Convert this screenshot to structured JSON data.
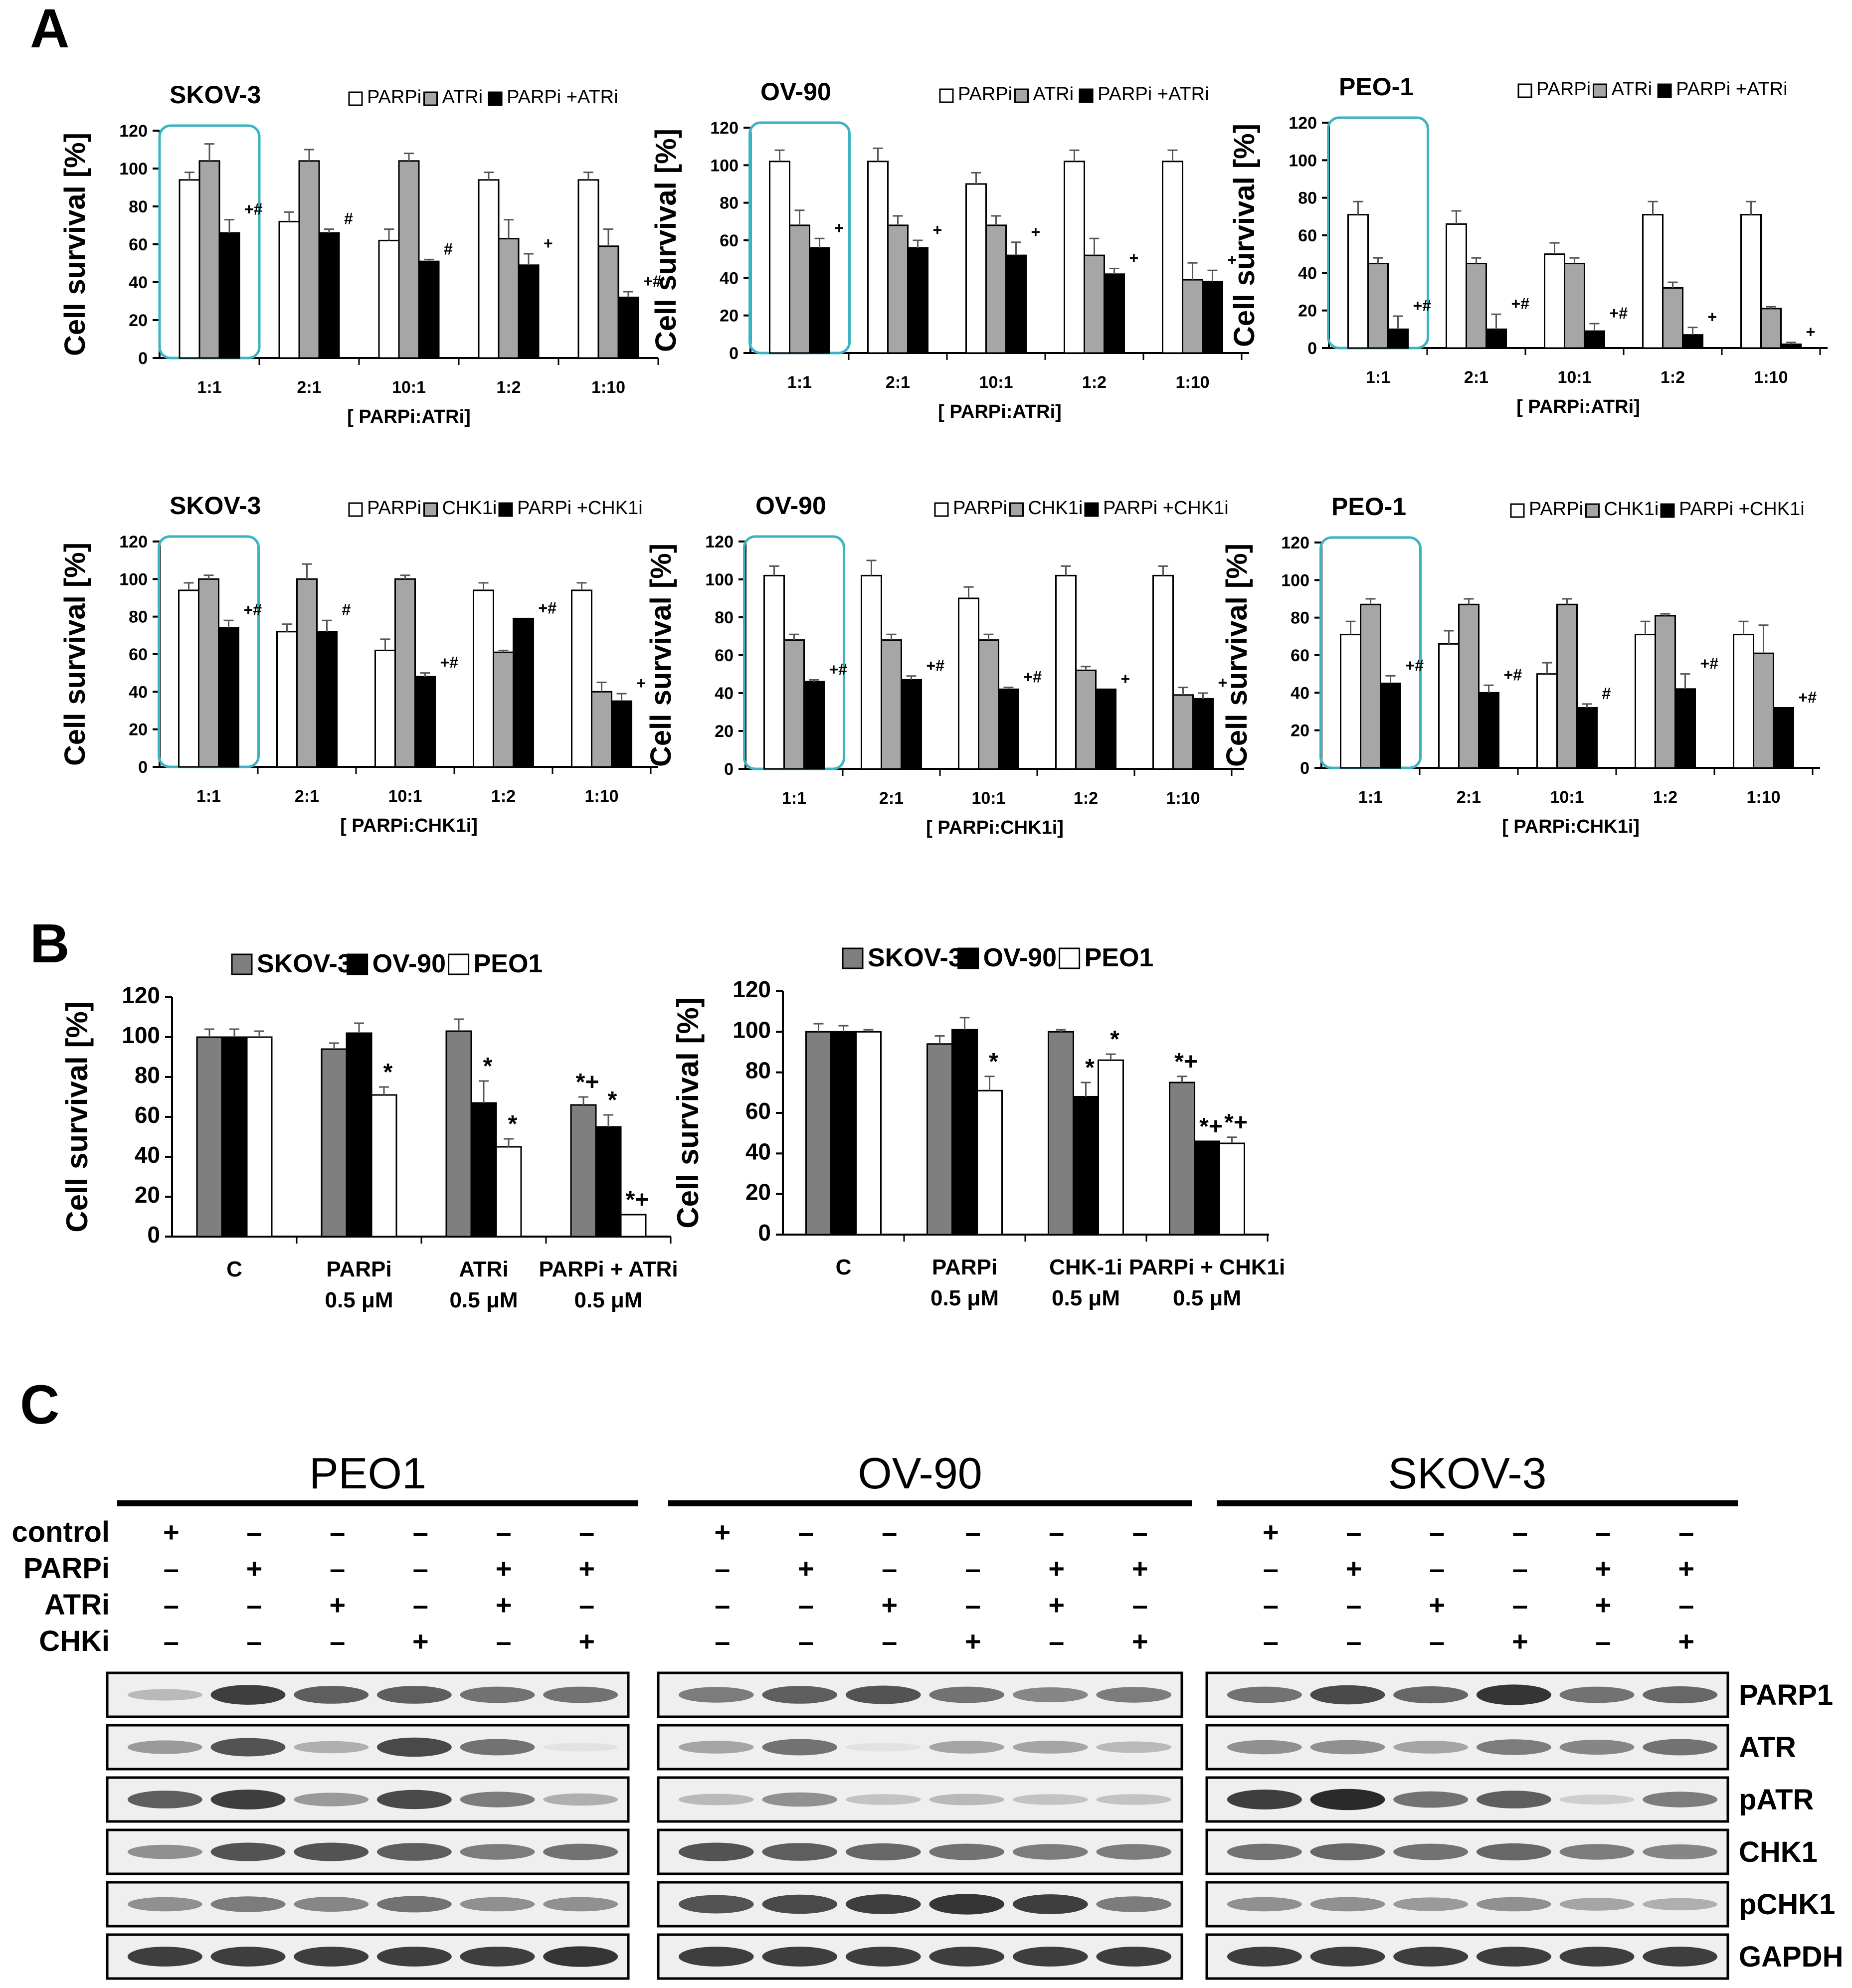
{
  "panel_letters": [
    "A",
    "B",
    "C"
  ],
  "chart_data": [
    {
      "id": "A1",
      "type": "bar",
      "title": "SKOV-3",
      "ylabel": "Cell survival [%]",
      "xlabel": "[ PARPi:ATRi]",
      "ylim": [
        0,
        120
      ],
      "yticks": [
        0,
        20,
        40,
        60,
        80,
        100,
        120
      ],
      "categories": [
        "1:1",
        "2:1",
        "10:1",
        "1:2",
        "1:10"
      ],
      "legend_position": "top-right",
      "highlight_category": "1:1",
      "colors": {
        "PARPi": "#ffffff",
        "ATRi": "#a6a6a6",
        "PARPi +ATRi": "#000000"
      },
      "series": [
        {
          "name": "PARPi",
          "values": [
            94,
            72,
            62,
            94,
            94
          ],
          "errors": [
            4,
            5,
            6,
            4,
            4
          ]
        },
        {
          "name": "ATRi",
          "values": [
            104,
            104,
            104,
            63,
            59
          ],
          "errors": [
            9,
            6,
            4,
            10,
            9
          ]
        },
        {
          "name": "PARPi +ATRi",
          "values": [
            66,
            66,
            51,
            49,
            32
          ],
          "errors": [
            7,
            2,
            1,
            6,
            3
          ]
        }
      ],
      "annotations": [
        "+#",
        "#",
        "#",
        "+",
        "+#"
      ]
    },
    {
      "id": "A2",
      "type": "bar",
      "title": "OV-90",
      "ylabel": "Cell survival [%]",
      "xlabel": "[ PARPi:ATRi]",
      "ylim": [
        0,
        120
      ],
      "yticks": [
        0,
        20,
        40,
        60,
        80,
        100,
        120
      ],
      "categories": [
        "1:1",
        "2:1",
        "10:1",
        "1:2",
        "1:10"
      ],
      "legend_position": "top-right",
      "highlight_category": "1:1",
      "colors": {
        "PARPi": "#ffffff",
        "ATRi": "#a6a6a6",
        "PARPi +ATRi": "#000000"
      },
      "series": [
        {
          "name": "PARPi",
          "values": [
            102,
            102,
            90,
            102,
            102
          ],
          "errors": [
            6,
            7,
            6,
            6,
            6
          ]
        },
        {
          "name": "ATRi",
          "values": [
            68,
            68,
            68,
            52,
            39
          ],
          "errors": [
            8,
            5,
            5,
            9,
            9
          ]
        },
        {
          "name": "PARPi +ATRi",
          "values": [
            56,
            56,
            52,
            42,
            38
          ],
          "errors": [
            5,
            4,
            7,
            3,
            6
          ]
        }
      ],
      "annotations": [
        "+",
        "+",
        "+",
        "+",
        "+"
      ]
    },
    {
      "id": "A3",
      "type": "bar",
      "title": "PEO-1",
      "ylabel": "Cell survival [%]",
      "xlabel": "[ PARPi:ATRi]",
      "ylim": [
        0,
        120
      ],
      "yticks": [
        0,
        20,
        40,
        60,
        80,
        100,
        120
      ],
      "categories": [
        "1:1",
        "2:1",
        "10:1",
        "1:2",
        "1:10"
      ],
      "legend_position": "top-right",
      "highlight_category": "1:1",
      "colors": {
        "PARPi": "#ffffff",
        "ATRi": "#a6a6a6",
        "PARPi +ATRi": "#000000"
      },
      "series": [
        {
          "name": "PARPi",
          "values": [
            71,
            66,
            50,
            71,
            71
          ],
          "errors": [
            7,
            7,
            6,
            7,
            7
          ]
        },
        {
          "name": "ATRi",
          "values": [
            45,
            45,
            45,
            32,
            21
          ],
          "errors": [
            3,
            3,
            3,
            3,
            1
          ]
        },
        {
          "name": "PARPi +ATRi",
          "values": [
            10,
            10,
            9,
            7,
            2
          ],
          "errors": [
            7,
            8,
            4,
            4,
            1
          ]
        }
      ],
      "annotations": [
        "+#",
        "+#",
        "+#",
        "+",
        "+"
      ]
    },
    {
      "id": "A4",
      "type": "bar",
      "title": "SKOV-3",
      "ylabel": "Cell survival [%]",
      "xlabel": "[ PARPi:CHK1i]",
      "ylim": [
        0,
        120
      ],
      "yticks": [
        0,
        20,
        40,
        60,
        80,
        100,
        120
      ],
      "categories": [
        "1:1",
        "2:1",
        "10:1",
        "1:2",
        "1:10"
      ],
      "legend_position": "top-right",
      "highlight_category": "1:1",
      "colors": {
        "PARPi": "#ffffff",
        "CHK1i": "#a6a6a6",
        "PARPi +CHK1i": "#000000"
      },
      "series": [
        {
          "name": "PARPi",
          "values": [
            94,
            72,
            62,
            94,
            94
          ],
          "errors": [
            4,
            4,
            6,
            4,
            4
          ]
        },
        {
          "name": "CHK1i",
          "values": [
            100,
            100,
            100,
            61,
            40
          ],
          "errors": [
            2,
            8,
            2,
            1,
            5
          ]
        },
        {
          "name": "PARPi +CHK1i",
          "values": [
            74,
            72,
            48,
            79,
            35
          ],
          "errors": [
            4,
            6,
            2,
            0,
            4
          ]
        }
      ],
      "annotations": [
        "+#",
        "#",
        "+#",
        "+#",
        "+"
      ]
    },
    {
      "id": "A5",
      "type": "bar",
      "title": "OV-90",
      "ylabel": "Cell survival [%]",
      "xlabel": "[ PARPi:CHK1i]",
      "ylim": [
        0,
        120
      ],
      "yticks": [
        0,
        20,
        40,
        60,
        80,
        100,
        120
      ],
      "categories": [
        "1:1",
        "2:1",
        "10:1",
        "1:2",
        "1:10"
      ],
      "legend_position": "top-right",
      "highlight_category": "1:1",
      "colors": {
        "PARPi": "#ffffff",
        "CHK1i": "#a6a6a6",
        "PARPi +CHK1i": "#000000"
      },
      "series": [
        {
          "name": "PARPi",
          "values": [
            102,
            102,
            90,
            102,
            102
          ],
          "errors": [
            5,
            8,
            6,
            5,
            5
          ]
        },
        {
          "name": "CHK1i",
          "values": [
            68,
            68,
            68,
            52,
            39
          ],
          "errors": [
            3,
            3,
            3,
            2,
            4
          ]
        },
        {
          "name": "PARPi +CHK1i",
          "values": [
            46,
            47,
            42,
            42,
            37
          ],
          "errors": [
            1,
            2,
            1,
            0,
            3
          ]
        }
      ],
      "annotations": [
        "+#",
        "+#",
        "+#",
        "+",
        "+"
      ]
    },
    {
      "id": "A6",
      "type": "bar",
      "title": "PEO-1",
      "ylabel": "Cell survival [%]",
      "xlabel": "[ PARPi:CHK1i]",
      "ylim": [
        0,
        120
      ],
      "yticks": [
        0,
        20,
        40,
        60,
        80,
        100,
        120
      ],
      "categories": [
        "1:1",
        "2:1",
        "10:1",
        "1:2",
        "1:10"
      ],
      "legend_position": "top-right",
      "highlight_category": "1:1",
      "colors": {
        "PARPi": "#ffffff",
        "CHK1i": "#a6a6a6",
        "PARPi +CHK1i": "#000000"
      },
      "series": [
        {
          "name": "PARPi",
          "values": [
            71,
            66,
            50,
            71,
            71
          ],
          "errors": [
            7,
            7,
            6,
            7,
            7
          ]
        },
        {
          "name": "CHK1i",
          "values": [
            87,
            87,
            87,
            81,
            61
          ],
          "errors": [
            3,
            3,
            3,
            1,
            15
          ]
        },
        {
          "name": "PARPi +CHK1i",
          "values": [
            45,
            40,
            32,
            42,
            32
          ],
          "errors": [
            4,
            4,
            2,
            8,
            0
          ]
        }
      ],
      "annotations": [
        "+#",
        "+#",
        "#",
        "+#",
        "+#"
      ]
    },
    {
      "id": "B1",
      "type": "bar",
      "ylabel": "Cell survival [%]",
      "ylim": [
        0,
        120
      ],
      "yticks": [
        0,
        20,
        40,
        60,
        80,
        100,
        120
      ],
      "categories": [
        [
          "C"
        ],
        [
          "PARPi",
          "0.5 μM"
        ],
        [
          "ATRi",
          "0.5 μM"
        ],
        [
          "PARPi + ATRi",
          "0.5 μM"
        ]
      ],
      "legend_position": "top",
      "colors": {
        "SKOV-3": "#7f7f7f",
        "OV-90": "#000000",
        "PEO1": "#ffffff"
      },
      "series": [
        {
          "name": "SKOV-3",
          "values": [
            100,
            94,
            103,
            66
          ],
          "errors": [
            4,
            3,
            6,
            4
          ],
          "annotations": [
            "",
            "",
            "",
            "*+"
          ]
        },
        {
          "name": "OV-90",
          "values": [
            100,
            102,
            67,
            55
          ],
          "errors": [
            4,
            5,
            11,
            6
          ],
          "annotations": [
            "",
            "",
            "*",
            "*"
          ]
        },
        {
          "name": "PEO1",
          "values": [
            100,
            71,
            45,
            11
          ],
          "errors": [
            3,
            4,
            4,
            0
          ],
          "annotations": [
            "",
            "*",
            "*",
            "*+"
          ]
        }
      ]
    },
    {
      "id": "B2",
      "type": "bar",
      "ylabel": "Cell survival [%]",
      "ylim": [
        0,
        120
      ],
      "yticks": [
        0,
        20,
        40,
        60,
        80,
        100,
        120
      ],
      "categories": [
        [
          "C"
        ],
        [
          "PARPi",
          "0.5 μM"
        ],
        [
          "CHK-1i",
          "0.5 μM"
        ],
        [
          "PARPi + CHK1i",
          "0.5 μM"
        ]
      ],
      "legend_position": "top",
      "colors": {
        "SKOV-3": "#7f7f7f",
        "OV-90": "#000000",
        "PEO1": "#ffffff"
      },
      "series": [
        {
          "name": "SKOV-3",
          "values": [
            100,
            94,
            100,
            75
          ],
          "errors": [
            4,
            4,
            1,
            3
          ],
          "annotations": [
            "",
            "",
            "",
            "*+"
          ]
        },
        {
          "name": "OV-90",
          "values": [
            100,
            101,
            68,
            46
          ],
          "errors": [
            3,
            6,
            7,
            0
          ],
          "annotations": [
            "",
            "",
            "*",
            "*+"
          ]
        },
        {
          "name": "PEO1",
          "values": [
            100,
            71,
            86,
            45
          ],
          "errors": [
            1,
            7,
            3,
            3
          ],
          "annotations": [
            "",
            "*",
            "*",
            "*+"
          ]
        }
      ]
    }
  ],
  "western": {
    "groups": [
      "PEO1",
      "OV-90",
      "SKOV-3"
    ],
    "treatment_rows": [
      {
        "label": "control",
        "signs": [
          "+",
          "–",
          "–",
          "–",
          "–",
          "–"
        ]
      },
      {
        "label": "PARPi",
        "signs": [
          "–",
          "+",
          "–",
          "–",
          "+",
          "+"
        ]
      },
      {
        "label": "ATRi",
        "signs": [
          "–",
          "–",
          "+",
          "–",
          "+",
          "–"
        ]
      },
      {
        "label": "CHKi",
        "signs": [
          "–",
          "–",
          "–",
          "+",
          "–",
          "+"
        ]
      }
    ],
    "proteins": [
      "PARP1",
      "ATR",
      "pATR",
      "CHK1",
      "pCHK1",
      "GAPDH"
    ],
    "band_intensity": {
      "PEO1": {
        "PARP1": [
          0.25,
          0.85,
          0.7,
          0.7,
          0.6,
          0.6
        ],
        "ATR": [
          0.4,
          0.75,
          0.3,
          0.8,
          0.6,
          0.05
        ],
        "pATR": [
          0.7,
          0.85,
          0.4,
          0.8,
          0.55,
          0.3
        ],
        "CHK1": [
          0.45,
          0.75,
          0.75,
          0.7,
          0.55,
          0.6
        ],
        "pCHK1": [
          0.45,
          0.55,
          0.5,
          0.6,
          0.45,
          0.45
        ],
        "GAPDH": [
          0.85,
          0.85,
          0.85,
          0.85,
          0.85,
          0.9
        ]
      },
      "OV-90": {
        "PARP1": [
          0.55,
          0.7,
          0.75,
          0.6,
          0.5,
          0.55
        ],
        "ATR": [
          0.35,
          0.6,
          0.05,
          0.35,
          0.35,
          0.25
        ],
        "pATR": [
          0.25,
          0.45,
          0.2,
          0.25,
          0.2,
          0.2
        ],
        "CHK1": [
          0.75,
          0.7,
          0.65,
          0.6,
          0.55,
          0.55
        ],
        "pCHK1": [
          0.75,
          0.8,
          0.85,
          0.9,
          0.85,
          0.55
        ],
        "GAPDH": [
          0.85,
          0.85,
          0.85,
          0.85,
          0.85,
          0.85
        ]
      },
      "SKOV-3": {
        "PARP1": [
          0.6,
          0.8,
          0.65,
          0.9,
          0.6,
          0.65
        ],
        "ATR": [
          0.45,
          0.45,
          0.35,
          0.55,
          0.5,
          0.6
        ],
        "pATR": [
          0.85,
          0.95,
          0.6,
          0.7,
          0.15,
          0.55
        ],
        "CHK1": [
          0.6,
          0.65,
          0.6,
          0.65,
          0.55,
          0.5
        ],
        "pCHK1": [
          0.45,
          0.45,
          0.4,
          0.45,
          0.35,
          0.3
        ],
        "GAPDH": [
          0.85,
          0.85,
          0.85,
          0.85,
          0.85,
          0.85
        ]
      }
    }
  }
}
